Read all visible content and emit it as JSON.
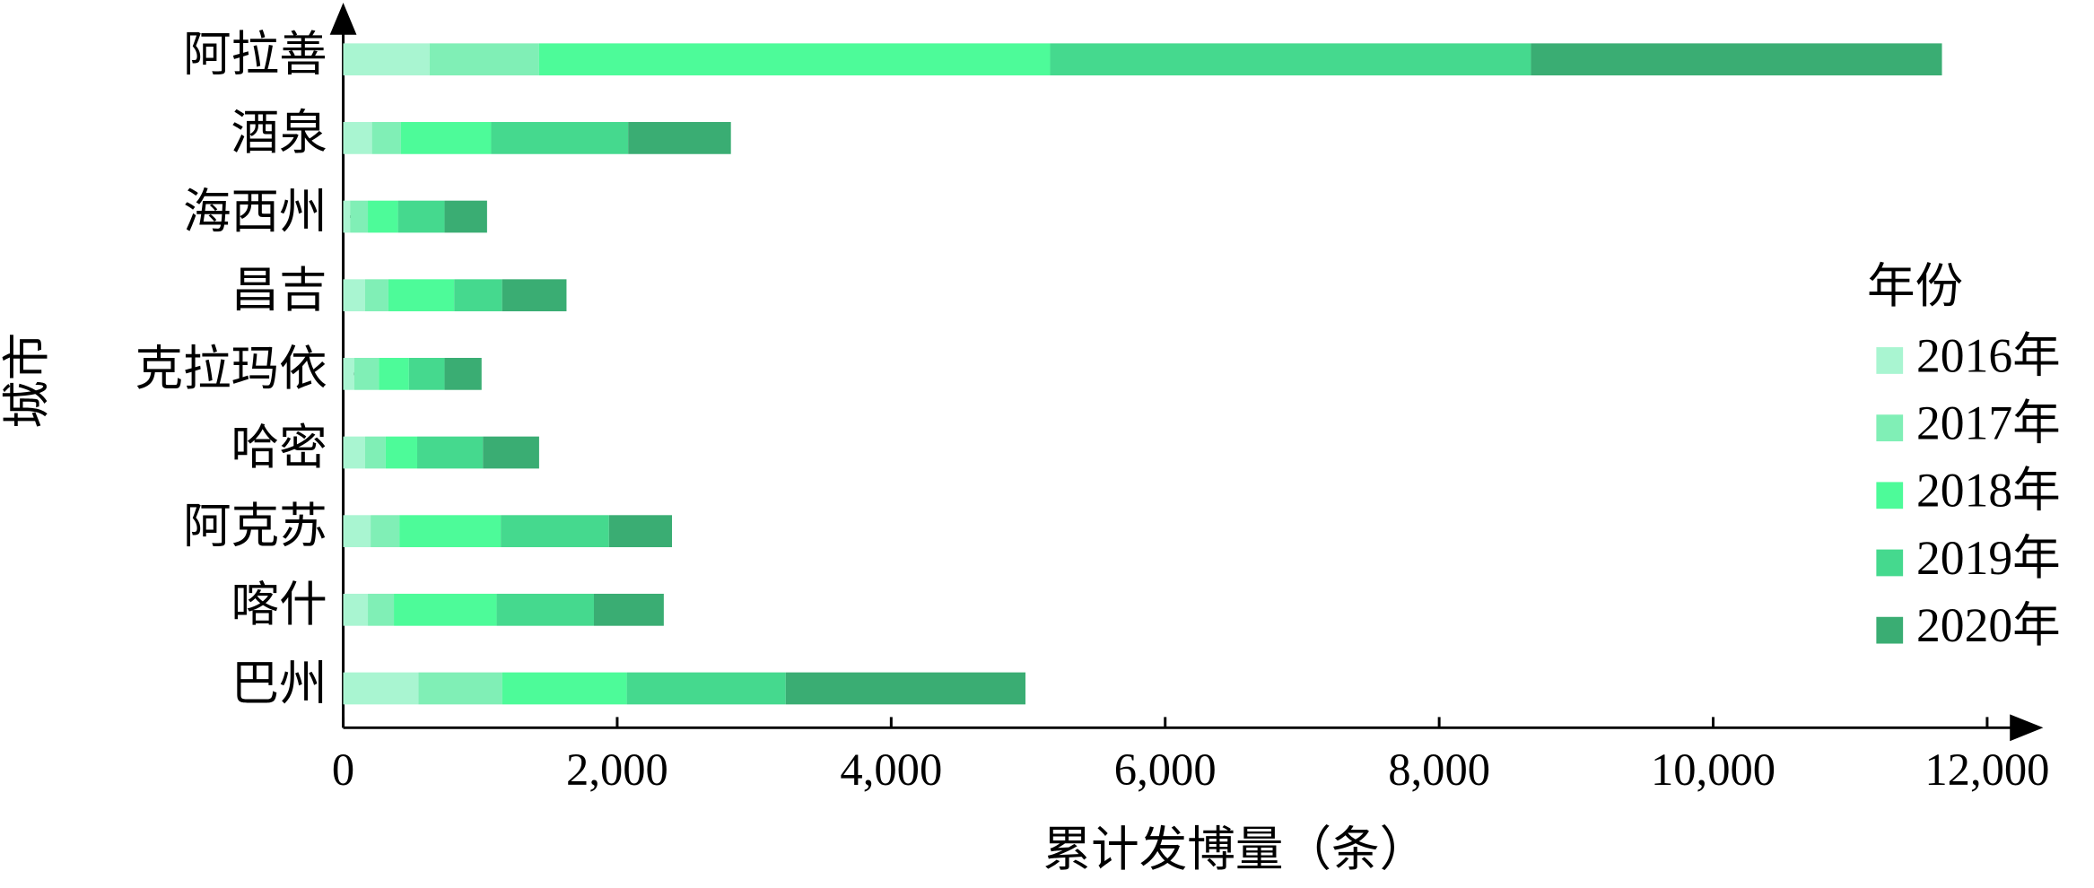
{
  "chart_data": {
    "type": "stacked-barh",
    "x_label": "累计发博量（条）",
    "y_label": "城市",
    "legend_title": "年份",
    "categories": [
      "阿拉善",
      "酒泉",
      "海西州",
      "昌吉",
      "克拉玛依",
      "哈密",
      "阿克苏",
      "喀什",
      "巴州"
    ],
    "series": [
      {
        "name": "2016年",
        "color": "#a9f5d1",
        "values": [
          630,
          210,
          50,
          160,
          80,
          160,
          200,
          180,
          550
        ]
      },
      {
        "name": "2017年",
        "color": "#80efb6",
        "values": [
          800,
          210,
          130,
          170,
          180,
          150,
          210,
          190,
          610
        ]
      },
      {
        "name": "2018年",
        "color": "#4dfb99",
        "values": [
          3730,
          660,
          220,
          480,
          220,
          230,
          740,
          750,
          910
        ]
      },
      {
        "name": "2019年",
        "color": "#45d98e",
        "values": [
          3510,
          1000,
          340,
          350,
          260,
          480,
          790,
          710,
          1160
        ]
      },
      {
        "name": "2020年",
        "color": "#3aad73",
        "values": [
          3000,
          750,
          310,
          470,
          270,
          410,
          460,
          510,
          1750
        ]
      }
    ],
    "xlim": [
      0,
      12000
    ],
    "xticks": [
      0,
      {
        "value": 2000,
        "label": "2,000"
      },
      {
        "value": 4000,
        "label": "4,000"
      },
      {
        "value": 6000,
        "label": "6,000"
      },
      {
        "value": 8000,
        "label": "8,000"
      },
      {
        "value": 10000,
        "label": "10,000"
      },
      {
        "value": 12000,
        "label": "12,000"
      }
    ],
    "legend_position": "right"
  }
}
